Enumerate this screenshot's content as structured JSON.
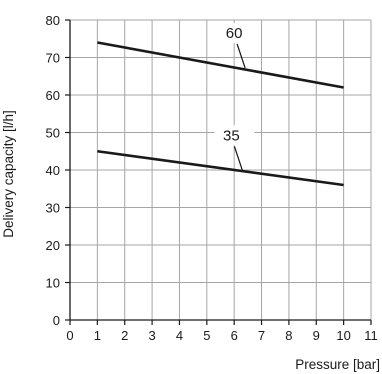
{
  "chart_data": {
    "type": "line",
    "xlabel": "Pressure [bar]",
    "ylabel": "Delivery capacity [l/h]",
    "xlim": [
      0,
      11
    ],
    "ylim": [
      0,
      80
    ],
    "x_ticks": [
      0,
      1,
      2,
      3,
      4,
      5,
      6,
      7,
      8,
      9,
      10,
      11
    ],
    "y_ticks": [
      0,
      10,
      20,
      30,
      40,
      50,
      60,
      70,
      80
    ],
    "grid": true,
    "line_color": "#1a1a1a",
    "grid_color": "#a6a6a6",
    "series": [
      {
        "name": "60",
        "x": [
          1,
          10
        ],
        "y": [
          74,
          62
        ],
        "label_at": {
          "x": 6.4,
          "y": 67.2
        }
      },
      {
        "name": "35",
        "x": [
          1,
          10
        ],
        "y": [
          45,
          36
        ],
        "label_at": {
          "x": 6.3,
          "y": 39.9
        }
      }
    ]
  }
}
